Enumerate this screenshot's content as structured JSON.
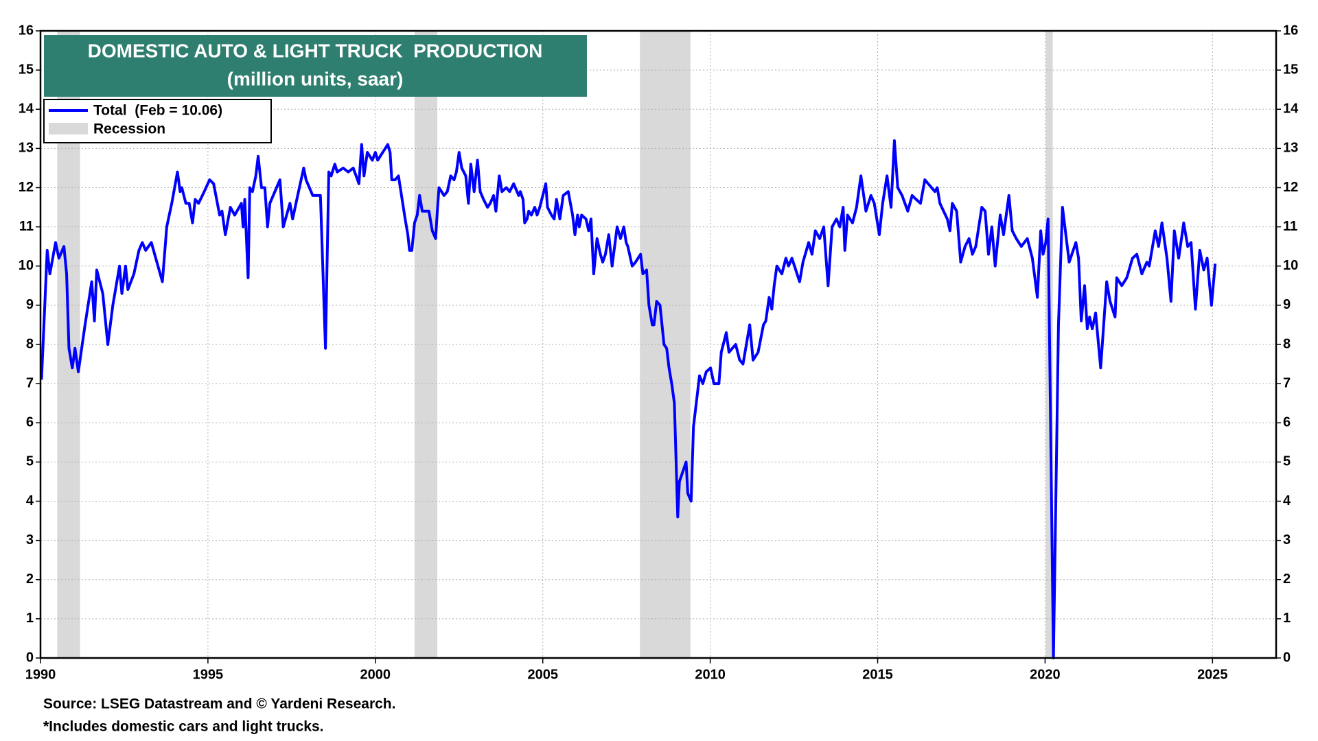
{
  "chart_data": {
    "type": "line",
    "title": "DOMESTIC AUTO & LIGHT TRUCK  PRODUCTION",
    "subtitle": "(million units, saar)",
    "source": "Source: LSEG Datastream and © Yardeni Research.",
    "note": "*Includes domestic cars and light trucks.",
    "xlim": [
      1990,
      2026.9
    ],
    "xticks": [
      1990,
      1995,
      2000,
      2005,
      2010,
      2015,
      2020,
      2025
    ],
    "ylim": [
      0,
      16
    ],
    "yticks": [
      0,
      1,
      2,
      3,
      4,
      5,
      6,
      7,
      8,
      9,
      10,
      11,
      12,
      13,
      14,
      15,
      16
    ],
    "grid": true,
    "legend": "upper left",
    "recession_label": "Recession",
    "recession_color": "#d9d9d9",
    "recessions": [
      {
        "start": 1990.5,
        "end": 1991.18
      },
      {
        "start": 2001.17,
        "end": 2001.85
      },
      {
        "start": 2007.9,
        "end": 2009.41
      },
      {
        "start": 2020.02,
        "end": 2020.23
      }
    ],
    "x": [
      1990.03,
      1990.2,
      1990.28,
      1990.45,
      1990.55,
      1990.7,
      1990.78,
      1990.85,
      1990.95,
      1991.03,
      1991.13,
      1991.33,
      1991.53,
      1991.61,
      1991.68,
      1991.86,
      1992.01,
      1992.16,
      1992.36,
      1992.43,
      1992.54,
      1992.61,
      1992.79,
      1992.94,
      1993.04,
      1993.14,
      1993.31,
      1993.64,
      1993.77,
      1993.92,
      1994.09,
      1994.17,
      1994.22,
      1994.34,
      1994.44,
      1994.54,
      1994.62,
      1994.72,
      1994.89,
      1995.05,
      1995.17,
      1995.35,
      1995.42,
      1995.52,
      1995.67,
      1995.8,
      1996.0,
      1996.05,
      1996.1,
      1996.2,
      1996.25,
      1996.33,
      1996.43,
      1996.5,
      1996.6,
      1996.7,
      1996.78,
      1996.85,
      1997.0,
      1997.15,
      1997.25,
      1997.45,
      1997.53,
      1997.68,
      1997.86,
      1997.93,
      1998.13,
      1998.36,
      1998.51,
      1998.61,
      1998.68,
      1998.79,
      1998.86,
      1999.04,
      1999.19,
      1999.34,
      1999.51,
      1999.59,
      1999.66,
      1999.76,
      1999.91,
      2000.0,
      2000.07,
      2000.22,
      2000.37,
      2000.44,
      2000.49,
      2000.59,
      2000.69,
      2000.89,
      2000.97,
      2001.02,
      2001.09,
      2001.17,
      2001.25,
      2001.32,
      2001.4,
      2001.6,
      2001.7,
      2001.8,
      2001.85,
      2001.9,
      2002.05,
      2002.15,
      2002.25,
      2002.35,
      2002.42,
      2002.5,
      2002.58,
      2002.7,
      2002.78,
      2002.85,
      2002.95,
      2003.05,
      2003.13,
      2003.23,
      2003.35,
      2003.43,
      2003.53,
      2003.6,
      2003.7,
      2003.78,
      2003.91,
      2004.01,
      2004.13,
      2004.28,
      2004.33,
      2004.41,
      2004.46,
      2004.53,
      2004.58,
      2004.66,
      2004.76,
      2004.83,
      2004.91,
      2005.09,
      2005.14,
      2005.26,
      2005.34,
      2005.41,
      2005.51,
      2005.61,
      2005.76,
      2005.89,
      2005.96,
      2006.04,
      2006.09,
      2006.16,
      2006.29,
      2006.37,
      2006.44,
      2006.52,
      2006.62,
      2006.72,
      2006.79,
      2006.87,
      2006.97,
      2007.07,
      2007.22,
      2007.32,
      2007.42,
      2007.49,
      2007.54,
      2007.67,
      2007.77,
      2007.92,
      2007.99,
      2008.1,
      2008.17,
      2008.27,
      2008.32,
      2008.4,
      2008.5,
      2008.62,
      2008.7,
      2008.77,
      2008.85,
      2008.93,
      2009.03,
      2009.08,
      2009.28,
      2009.33,
      2009.43,
      2009.5,
      2009.68,
      2009.78,
      2009.88,
      2010.01,
      2010.11,
      2010.26,
      2010.33,
      2010.48,
      2010.56,
      2010.76,
      2010.88,
      2010.98,
      2011.08,
      2011.18,
      2011.28,
      2011.43,
      2011.59,
      2011.66,
      2011.76,
      2011.84,
      2011.91,
      2011.99,
      2012.14,
      2012.26,
      2012.34,
      2012.44,
      2012.67,
      2012.77,
      2012.94,
      2013.04,
      2013.14,
      2013.27,
      2013.39,
      2013.52,
      2013.64,
      2013.77,
      2013.87,
      2013.97,
      2014.02,
      2014.1,
      2014.25,
      2014.37,
      2014.5,
      2014.65,
      2014.8,
      2014.9,
      2015.05,
      2015.15,
      2015.28,
      2015.4,
      2015.5,
      2015.6,
      2015.73,
      2015.9,
      2016.03,
      2016.15,
      2016.28,
      2016.41,
      2016.61,
      2016.71,
      2016.78,
      2016.86,
      2017.08,
      2017.16,
      2017.23,
      2017.36,
      2017.48,
      2017.61,
      2017.73,
      2017.83,
      2017.93,
      2018.11,
      2018.21,
      2018.31,
      2018.41,
      2018.51,
      2018.66,
      2018.76,
      2018.92,
      2019.02,
      2019.14,
      2019.29,
      2019.47,
      2019.62,
      2019.77,
      2019.87,
      2019.94,
      2020.02,
      2020.09,
      2020.25,
      2020.4,
      2020.52,
      2020.62,
      2020.72,
      2020.92,
      2021.0,
      2021.08,
      2021.18,
      2021.26,
      2021.33,
      2021.41,
      2021.51,
      2021.66,
      2021.84,
      2021.94,
      2022.09,
      2022.14,
      2022.29,
      2022.44,
      2022.61,
      2022.74,
      2022.89,
      2023.04,
      2023.11,
      2023.29,
      2023.39,
      2023.49,
      2023.64,
      2023.76,
      2023.86,
      2023.99,
      2024.14,
      2024.26,
      2024.36,
      2024.49,
      2024.62,
      2024.74,
      2024.84,
      2024.97,
      2025.08
    ],
    "series": [
      {
        "name": "Total  (Feb = 10.06)",
        "color": "#0000ff",
        "values": [
          7.1,
          10.4,
          9.8,
          10.6,
          10.2,
          10.5,
          9.8,
          7.9,
          7.4,
          7.9,
          7.3,
          8.5,
          9.6,
          8.6,
          9.9,
          9.3,
          8.0,
          9.0,
          10.0,
          9.3,
          10.0,
          9.4,
          9.8,
          10.4,
          10.6,
          10.4,
          10.6,
          9.6,
          11.0,
          11.6,
          12.4,
          11.9,
          12.0,
          11.6,
          11.6,
          11.1,
          11.7,
          11.6,
          11.9,
          12.2,
          12.1,
          11.3,
          11.4,
          10.8,
          11.5,
          11.3,
          11.6,
          11.0,
          11.7,
          9.7,
          12.0,
          11.9,
          12.3,
          12.8,
          12.0,
          12.0,
          11.0,
          11.6,
          11.9,
          12.2,
          11.0,
          11.6,
          11.2,
          11.8,
          12.5,
          12.2,
          11.8,
          11.8,
          7.9,
          12.4,
          12.3,
          12.6,
          12.4,
          12.5,
          12.4,
          12.5,
          12.1,
          13.1,
          12.3,
          12.9,
          12.7,
          12.9,
          12.7,
          12.9,
          13.1,
          12.9,
          12.2,
          12.2,
          12.3,
          11.2,
          10.8,
          10.4,
          10.4,
          11.1,
          11.3,
          11.8,
          11.4,
          11.4,
          10.9,
          10.7,
          11.4,
          12.0,
          11.8,
          11.9,
          12.3,
          12.2,
          12.4,
          12.9,
          12.5,
          12.3,
          11.6,
          12.6,
          11.9,
          12.7,
          11.9,
          11.7,
          11.5,
          11.6,
          11.8,
          11.4,
          12.3,
          11.9,
          12.0,
          11.9,
          12.1,
          11.8,
          11.9,
          11.7,
          11.1,
          11.2,
          11.4,
          11.3,
          11.5,
          11.3,
          11.5,
          12.1,
          11.5,
          11.3,
          11.2,
          11.7,
          11.2,
          11.8,
          11.9,
          11.3,
          10.8,
          11.3,
          11.0,
          11.3,
          11.2,
          10.9,
          11.2,
          9.8,
          10.7,
          10.3,
          10.1,
          10.3,
          10.8,
          10.0,
          11.0,
          10.7,
          11.0,
          10.6,
          10.5,
          10.0,
          10.1,
          10.3,
          9.8,
          9.9,
          9.0,
          8.5,
          8.5,
          9.1,
          9.0,
          8.0,
          7.9,
          7.4,
          7.0,
          6.5,
          3.6,
          4.5,
          5.0,
          4.2,
          4.0,
          5.9,
          7.2,
          7.0,
          7.3,
          7.4,
          7.0,
          7.0,
          7.8,
          8.3,
          7.8,
          8.0,
          7.6,
          7.5,
          8.0,
          8.5,
          7.6,
          7.8,
          8.5,
          8.6,
          9.2,
          8.9,
          9.5,
          10.0,
          9.8,
          10.2,
          10.0,
          10.2,
          9.6,
          10.1,
          10.6,
          10.3,
          10.9,
          10.7,
          11.0,
          9.5,
          11.0,
          11.2,
          11.0,
          11.5,
          10.4,
          11.3,
          11.1,
          11.5,
          12.3,
          11.4,
          11.8,
          11.6,
          10.8,
          11.6,
          12.3,
          11.5,
          13.2,
          12.0,
          11.8,
          11.4,
          11.8,
          11.7,
          11.6,
          12.2,
          12.0,
          11.9,
          12.0,
          11.6,
          11.2,
          10.9,
          11.6,
          11.4,
          10.1,
          10.5,
          10.7,
          10.3,
          10.5,
          11.5,
          11.4,
          10.3,
          11.0,
          10.0,
          11.3,
          10.8,
          11.8,
          10.9,
          10.7,
          10.5,
          10.7,
          10.2,
          9.2,
          10.9,
          10.3,
          10.6,
          11.2,
          0.0,
          8.5,
          11.5,
          10.8,
          10.1,
          10.6,
          10.2,
          8.6,
          9.5,
          8.4,
          8.7,
          8.4,
          8.8,
          7.4,
          9.6,
          9.1,
          8.7,
          9.7,
          9.5,
          9.7,
          10.2,
          10.3,
          9.8,
          10.1,
          10.0,
          10.9,
          10.5,
          11.1,
          10.2,
          9.1,
          10.9,
          10.2,
          11.1,
          10.5,
          10.6,
          8.9,
          10.4,
          9.9,
          10.2,
          9.0,
          10.06
        ]
      }
    ]
  }
}
